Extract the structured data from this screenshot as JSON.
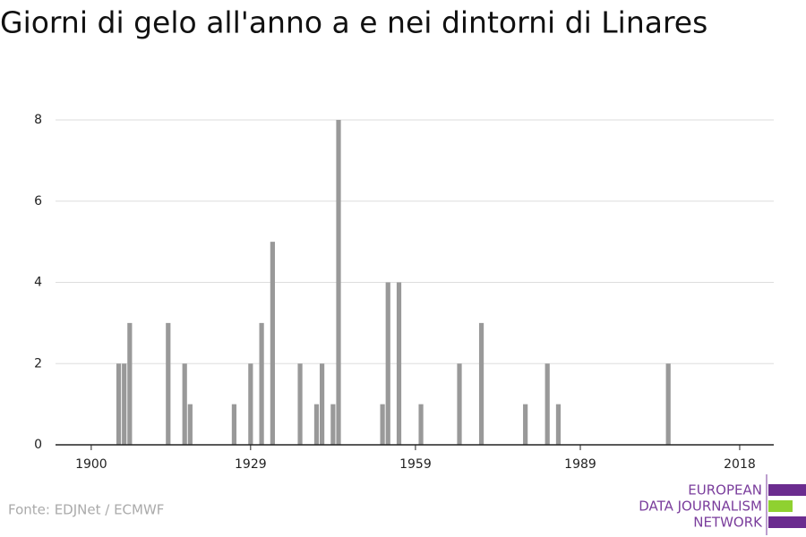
{
  "chart_data": {
    "type": "bar",
    "title": "Giorni di gelo all'anno a e nei dintorni di Linares",
    "x": [
      1905,
      1906,
      1907,
      1914,
      1917,
      1918,
      1926,
      1929,
      1931,
      1933,
      1938,
      1941,
      1942,
      1944,
      1945,
      1953,
      1954,
      1956,
      1960,
      1967,
      1971,
      1979,
      1983,
      1985,
      2005
    ],
    "values": [
      2,
      2,
      3,
      3,
      2,
      1,
      1,
      2,
      3,
      5,
      2,
      1,
      2,
      1,
      8,
      1,
      4,
      4,
      1,
      2,
      3,
      1,
      2,
      1,
      2
    ],
    "color": "#999999",
    "xlim": [
      1893.5,
      2024.2
    ],
    "xticks": [
      1900,
      1929,
      1959,
      1989,
      2018
    ],
    "ylim": [
      0,
      8
    ],
    "yticks": [
      0,
      2,
      4,
      6,
      8
    ],
    "grid": true,
    "source": "Fonte: EDJNet / ECMWF",
    "logo": [
      "EUROPEAN",
      "DATA JOURNALISM",
      "NETWORK"
    ]
  }
}
